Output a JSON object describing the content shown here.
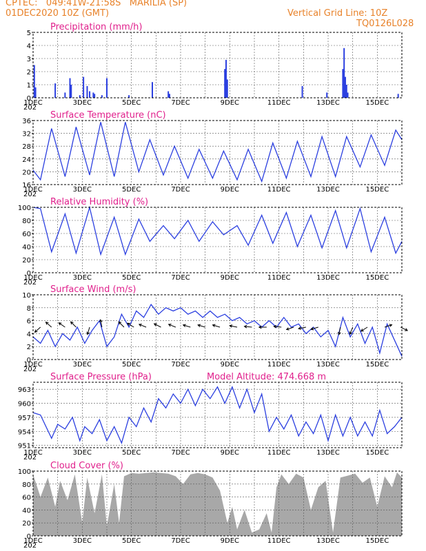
{
  "header": {
    "source_loc": "CPTEC:   049:41W-21:58S   MARILIA (SP)",
    "init_time": "01DEC2020 10Z (GMT)",
    "grid_note": "Vertical Grid Line: 10Z",
    "code": "TQ0126L028"
  },
  "colors": {
    "header": "#e8822a",
    "title": "#e0208c",
    "line": "#2b3fe0",
    "cloud": "#a8a8a8"
  },
  "x_axis": {
    "start_day": 1,
    "end_day": 16,
    "tick_days": [
      1,
      3,
      5,
      7,
      9,
      11,
      13,
      15
    ],
    "tick_labels": [
      "1DEC",
      "3DEC",
      "5DEC",
      "7DEC",
      "9DEC",
      "11DEC",
      "13DEC",
      "15DEC"
    ],
    "year_stub": "202"
  },
  "chart_data": [
    {
      "type": "bar",
      "title": "Precipitation (mm/h)",
      "ylim": [
        0,
        5
      ],
      "yticks": [
        0,
        1,
        2,
        3,
        4,
        5
      ],
      "grid": true,
      "x": [
        1.05,
        1.1,
        1.9,
        2.3,
        2.5,
        2.55,
        2.9,
        3.05,
        3.2,
        3.3,
        3.45,
        3.5,
        3.8,
        4.0,
        4.9,
        5.85,
        6.5,
        6.55,
        8.8,
        8.85,
        8.9,
        11.95,
        12.95,
        13.6,
        13.65,
        13.7,
        13.75,
        13.8,
        15.85
      ],
      "values": [
        2.5,
        0.8,
        1.1,
        0.4,
        1.5,
        1.0,
        0.2,
        1.6,
        0.9,
        0.5,
        0.4,
        0.3,
        0.2,
        1.5,
        0.2,
        1.2,
        0.5,
        0.3,
        2.2,
        2.9,
        1.4,
        0.9,
        0.4,
        2.2,
        3.8,
        1.6,
        1.0,
        0.4,
        0.3
      ]
    },
    {
      "type": "line",
      "title": "Surface Temperature (nC)",
      "ylim": [
        16,
        36
      ],
      "yticks": [
        16,
        20,
        24,
        28,
        32,
        36
      ],
      "grid": true,
      "x": [
        1.0,
        1.3,
        1.75,
        2.3,
        2.75,
        3.3,
        3.75,
        4.3,
        4.75,
        5.3,
        5.75,
        6.3,
        6.75,
        7.3,
        7.75,
        8.3,
        8.75,
        9.3,
        9.75,
        10.3,
        10.75,
        11.3,
        11.75,
        12.3,
        12.75,
        13.3,
        13.75,
        14.3,
        14.75,
        15.3,
        15.75,
        16.0
      ],
      "values": [
        20.5,
        17.5,
        33.5,
        18.5,
        34.0,
        19.0,
        35.5,
        18.5,
        35.5,
        20.0,
        30.0,
        19.0,
        28.0,
        18.0,
        27.0,
        18.0,
        26.5,
        17.5,
        27.0,
        17.0,
        29.0,
        18.0,
        29.5,
        18.5,
        31.0,
        18.5,
        31.0,
        21.5,
        31.5,
        22.0,
        33.0,
        30.0
      ]
    },
    {
      "type": "line",
      "title": "Relative Humidity (%)",
      "ylim": [
        0,
        100
      ],
      "yticks": [
        0,
        20,
        40,
        60,
        80,
        100
      ],
      "grid": true,
      "x": [
        1.0,
        1.3,
        1.75,
        2.3,
        2.75,
        3.3,
        3.75,
        4.3,
        4.75,
        5.3,
        5.75,
        6.3,
        6.75,
        7.3,
        7.75,
        8.3,
        8.75,
        9.3,
        9.75,
        10.3,
        10.75,
        11.3,
        11.75,
        12.3,
        12.75,
        13.3,
        13.75,
        14.3,
        14.75,
        15.3,
        15.75,
        16.0
      ],
      "values": [
        100,
        98,
        32,
        90,
        30,
        100,
        28,
        85,
        28,
        82,
        48,
        72,
        52,
        80,
        48,
        78,
        58,
        72,
        42,
        88,
        45,
        92,
        40,
        88,
        38,
        95,
        38,
        98,
        32,
        85,
        30,
        48
      ]
    },
    {
      "type": "line",
      "title": "Surface Wind (m/s)",
      "ylim": [
        0,
        10
      ],
      "yticks": [
        0,
        2,
        4,
        6,
        8,
        10
      ],
      "grid": true,
      "x": [
        1.0,
        1.3,
        1.6,
        1.9,
        2.2,
        2.5,
        2.8,
        3.1,
        3.4,
        3.7,
        4.0,
        4.3,
        4.6,
        4.9,
        5.2,
        5.5,
        5.8,
        6.1,
        6.4,
        6.7,
        7.0,
        7.3,
        7.6,
        7.9,
        8.2,
        8.5,
        8.8,
        9.1,
        9.4,
        9.7,
        10.0,
        10.3,
        10.6,
        10.9,
        11.2,
        11.5,
        11.8,
        12.1,
        12.4,
        12.7,
        13.0,
        13.3,
        13.6,
        13.9,
        14.2,
        14.5,
        14.8,
        15.1,
        15.4,
        15.7,
        16.0
      ],
      "values": [
        3.5,
        2.5,
        4.5,
        2.0,
        4.0,
        3.0,
        5.0,
        2.5,
        4.5,
        6.0,
        2.0,
        3.5,
        7.0,
        5.0,
        7.5,
        6.5,
        8.5,
        7.0,
        8.0,
        7.5,
        8.0,
        7.0,
        7.5,
        6.5,
        7.5,
        6.5,
        7.0,
        6.0,
        6.5,
        5.5,
        6.0,
        5.0,
        6.0,
        5.0,
        6.5,
        5.0,
        5.5,
        4.0,
        5.0,
        3.5,
        4.5,
        2.0,
        6.5,
        3.5,
        5.5,
        2.5,
        5.0,
        1.0,
        5.5,
        3.0,
        0.5
      ],
      "arrows": [
        {
          "x": 1.3,
          "u": -1.0,
          "v": -0.9
        },
        {
          "x": 1.75,
          "u": -0.9,
          "v": 0.8
        },
        {
          "x": 2.3,
          "u": -1.0,
          "v": 0.7
        },
        {
          "x": 2.75,
          "u": -0.9,
          "v": 0.9
        },
        {
          "x": 3.3,
          "u": -0.3,
          "v": -1.0
        },
        {
          "x": 3.8,
          "u": -0.2,
          "v": 1.0
        },
        {
          "x": 4.7,
          "u": -1.0,
          "v": 1.0
        },
        {
          "x": 5.1,
          "u": -1.0,
          "v": 0.6
        },
        {
          "x": 5.6,
          "u": -1.0,
          "v": 0.4
        },
        {
          "x": 6.2,
          "u": -1.0,
          "v": 0.5
        },
        {
          "x": 6.8,
          "u": -1.0,
          "v": 0.4
        },
        {
          "x": 7.4,
          "u": -1.0,
          "v": 0.3
        },
        {
          "x": 8.0,
          "u": -1.0,
          "v": 0.3
        },
        {
          "x": 8.6,
          "u": -1.0,
          "v": 0.3
        },
        {
          "x": 9.3,
          "u": -1.0,
          "v": 0.2
        },
        {
          "x": 9.9,
          "u": -1.0,
          "v": 0.1
        },
        {
          "x": 10.5,
          "u": -1.0,
          "v": 0.0
        },
        {
          "x": 11.1,
          "u": -1.0,
          "v": 0.1
        },
        {
          "x": 11.6,
          "u": -0.9,
          "v": -0.3
        },
        {
          "x": 12.1,
          "u": -1.0,
          "v": -0.2
        },
        {
          "x": 12.6,
          "u": -1.0,
          "v": -0.3
        },
        {
          "x": 13.5,
          "u": -0.2,
          "v": -1.0
        },
        {
          "x": 14.0,
          "u": -0.4,
          "v": -1.0
        },
        {
          "x": 14.6,
          "u": -0.8,
          "v": -0.5
        },
        {
          "x": 15.3,
          "u": 0.9,
          "v": 0.3
        },
        {
          "x": 15.95,
          "u": 0.8,
          "v": -0.4
        }
      ]
    },
    {
      "type": "line",
      "title": "Surface Pressure (hPa)",
      "subtitle": "Model Altitude: 474.668 m",
      "ylim": [
        950.5,
        964.5
      ],
      "yticks": [
        951,
        954,
        957,
        960,
        963
      ],
      "grid": true,
      "x": [
        1.0,
        1.3,
        1.75,
        2.0,
        2.3,
        2.6,
        2.9,
        3.1,
        3.4,
        3.7,
        4.0,
        4.3,
        4.6,
        4.9,
        5.2,
        5.5,
        5.8,
        6.1,
        6.4,
        6.7,
        7.0,
        7.3,
        7.6,
        7.9,
        8.2,
        8.5,
        8.8,
        9.1,
        9.4,
        9.7,
        10.0,
        10.3,
        10.6,
        10.9,
        11.2,
        11.5,
        11.8,
        12.1,
        12.4,
        12.7,
        13.0,
        13.3,
        13.6,
        13.9,
        14.2,
        14.5,
        14.8,
        15.1,
        15.4,
        15.7,
        16.0
      ],
      "values": [
        958.0,
        957.5,
        952.5,
        955.5,
        954.5,
        957.0,
        952.0,
        955.0,
        953.5,
        956.5,
        952.0,
        955.0,
        951.5,
        957.0,
        955.0,
        959.0,
        956.0,
        961.0,
        959.0,
        962.0,
        960.0,
        963.0,
        959.5,
        963.0,
        961.0,
        963.5,
        960.0,
        963.5,
        959.0,
        963.0,
        958.0,
        962.0,
        954.0,
        957.0,
        954.5,
        957.5,
        953.0,
        956.0,
        953.5,
        957.5,
        952.0,
        957.5,
        953.0,
        957.0,
        953.0,
        956.0,
        953.0,
        958.5,
        953.5,
        955.0,
        957.0
      ]
    },
    {
      "type": "area",
      "title": "Cloud Cover (%)",
      "ylim": [
        0,
        100
      ],
      "yticks": [
        0,
        20,
        40,
        60,
        80,
        100
      ],
      "grid": true,
      "x": [
        1.0,
        1.3,
        1.6,
        1.9,
        2.1,
        2.4,
        2.7,
        3.0,
        3.2,
        3.5,
        3.8,
        4.0,
        4.3,
        4.5,
        4.7,
        5.0,
        5.3,
        5.6,
        5.9,
        6.2,
        6.5,
        6.8,
        7.1,
        7.4,
        7.7,
        8.0,
        8.3,
        8.6,
        8.9,
        9.1,
        9.3,
        9.6,
        9.9,
        10.2,
        10.5,
        10.7,
        10.9,
        11.1,
        11.4,
        11.7,
        12.0,
        12.3,
        12.6,
        12.9,
        13.2,
        13.5,
        13.8,
        14.1,
        14.4,
        14.7,
        15.0,
        15.3,
        15.6,
        15.8,
        16.0
      ],
      "values": [
        95,
        60,
        90,
        45,
        85,
        55,
        95,
        20,
        90,
        35,
        95,
        15,
        80,
        20,
        92,
        97,
        96,
        97,
        98,
        97,
        96,
        92,
        80,
        95,
        97,
        95,
        90,
        70,
        20,
        45,
        10,
        40,
        5,
        10,
        35,
        5,
        75,
        95,
        80,
        96,
        90,
        40,
        75,
        85,
        5,
        90,
        93,
        96,
        82,
        90,
        45,
        92,
        75,
        98,
        90
      ]
    }
  ]
}
